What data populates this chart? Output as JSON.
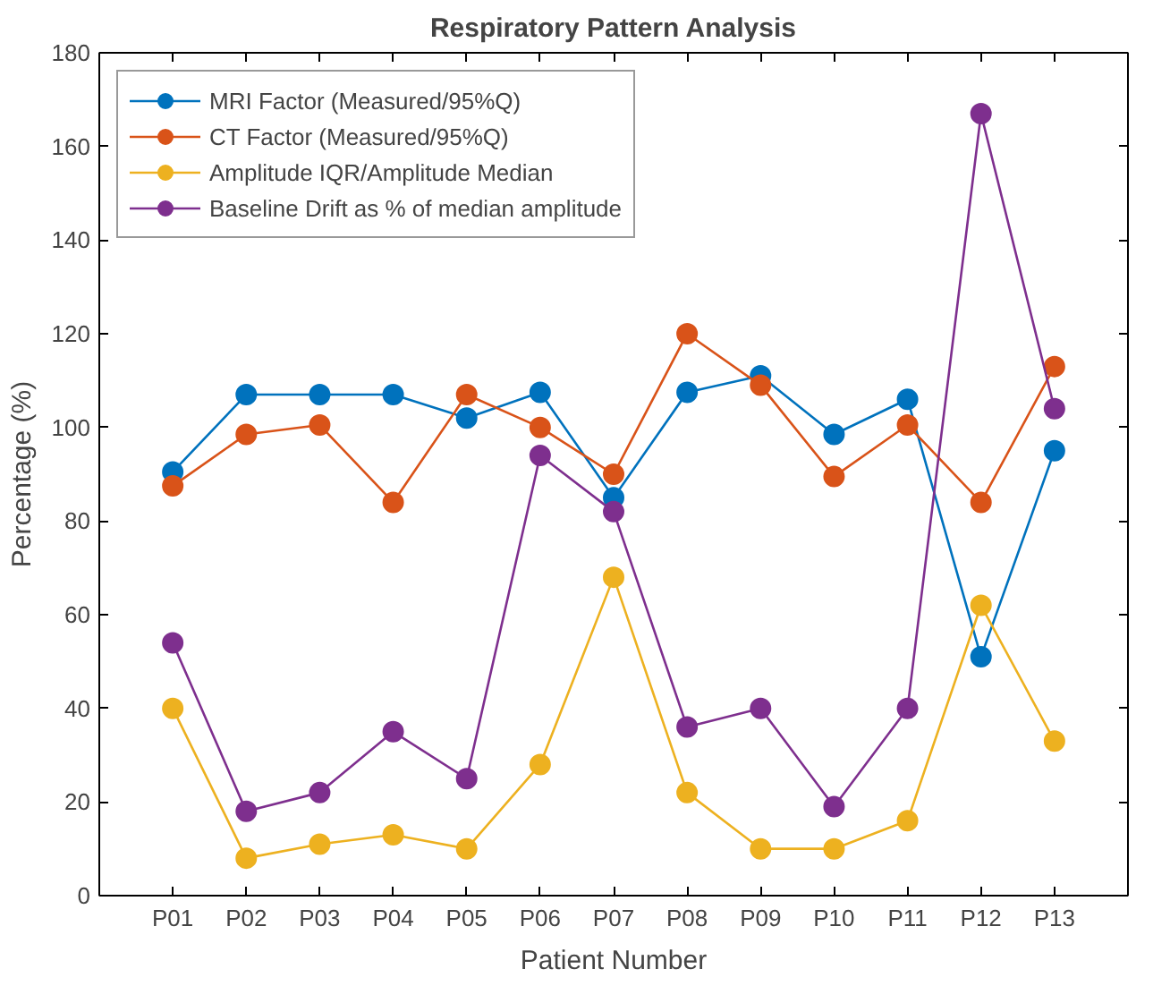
{
  "chart_data": {
    "type": "line",
    "title": "Respiratory Pattern Analysis",
    "xlabel": "Patient Number",
    "ylabel": "Percentage (%)",
    "categories": [
      "P01",
      "P02",
      "P03",
      "P04",
      "P05",
      "P06",
      "P07",
      "P08",
      "P09",
      "P10",
      "P11",
      "P12",
      "P13"
    ],
    "series": [
      {
        "name": "MRI Factor (Measured/95%Q)",
        "color": "#0072bd",
        "values": [
          90.5,
          107,
          107,
          107,
          102,
          107.5,
          85,
          107.5,
          111,
          98.5,
          106,
          51,
          95
        ]
      },
      {
        "name": "CT Factor (Measured/95%Q)",
        "color": "#d95319",
        "values": [
          87.5,
          98.5,
          100.5,
          84,
          107,
          100,
          90,
          120,
          109,
          89.5,
          100.5,
          84,
          113
        ]
      },
      {
        "name": "Amplitude IQR/Amplitude Median",
        "color": "#edb120",
        "values": [
          40,
          8,
          11,
          13,
          10,
          28,
          68,
          22,
          10,
          10,
          16,
          62,
          33
        ]
      },
      {
        "name": "Baseline Drift as % of median amplitude",
        "color": "#7e2f8e",
        "values": [
          54,
          18,
          22,
          35,
          25,
          94,
          82,
          36,
          40,
          19,
          40,
          167,
          104
        ]
      }
    ],
    "ylim": [
      0,
      180
    ],
    "yticks": [
      0,
      20,
      40,
      60,
      80,
      100,
      120,
      140,
      160,
      180
    ],
    "legend": "top left",
    "marker": "circle",
    "grid": false
  }
}
